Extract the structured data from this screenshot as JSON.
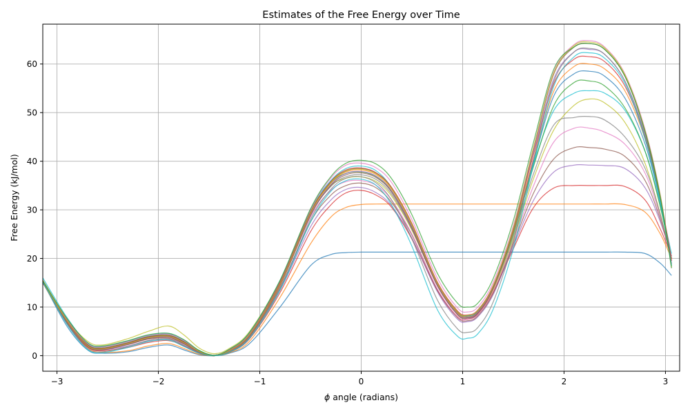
{
  "chart_data": {
    "type": "line",
    "title": "Estimates of the Free Energy over Time",
    "xlabel_symbol": "ϕ",
    "xlabel_rest": " angle (radians)",
    "ylabel": "Free Energy (kJ/mol)",
    "xlim": [
      -3.14,
      3.14
    ],
    "ylim": [
      -3.2,
      68.2
    ],
    "xticks": [
      -3,
      -2,
      -1,
      0,
      1,
      2,
      3
    ],
    "xtick_labels": [
      "−3",
      "−2",
      "−1",
      "0",
      "1",
      "2",
      "3"
    ],
    "yticks": [
      0,
      10,
      20,
      30,
      40,
      50,
      60
    ],
    "ytick_labels": [
      "0",
      "10",
      "20",
      "30",
      "40",
      "50",
      "60"
    ],
    "grid": true,
    "colors": [
      "#1f77b4",
      "#ff7f0e",
      "#d62728",
      "#9467bd",
      "#8c564b",
      "#e377c2",
      "#bcbd22",
      "#7f7f7f",
      "#17becf",
      "#2ca02c"
    ],
    "x": [
      -3.14,
      -2.9,
      -2.7,
      -2.55,
      -2.3,
      -2.1,
      -1.9,
      -1.75,
      -1.6,
      -1.45,
      -1.3,
      -1.1,
      -0.8,
      -0.5,
      -0.3,
      -0.15,
      0.0,
      0.15,
      0.3,
      0.5,
      0.75,
      0.95,
      1.05,
      1.15,
      1.3,
      1.5,
      1.7,
      1.9,
      2.1,
      2.25,
      2.4,
      2.6,
      2.8,
      2.95,
      3.06
    ],
    "series": [
      {
        "values": [
          15.2,
          6.0,
          1.2,
          0.5,
          0.8,
          1.7,
          2.2,
          1.2,
          0.2,
          0.0,
          0.5,
          2.5,
          10.0,
          18.5,
          20.8,
          21.2,
          21.3,
          21.3,
          21.3,
          21.3,
          21.3,
          21.3,
          21.3,
          21.3,
          21.3,
          21.3,
          21.3,
          21.3,
          21.3,
          21.3,
          21.3,
          21.3,
          21.0,
          19.0,
          16.5
        ]
      },
      {
        "values": [
          15.0,
          6.5,
          1.6,
          0.7,
          1.0,
          2.0,
          2.5,
          1.5,
          0.3,
          0.0,
          0.6,
          3.0,
          12.0,
          23.0,
          28.5,
          30.5,
          31.1,
          31.2,
          31.2,
          31.2,
          31.2,
          31.2,
          31.2,
          31.2,
          31.2,
          31.2,
          31.2,
          31.2,
          31.2,
          31.2,
          31.2,
          31.1,
          29.5,
          25.0,
          20.0
        ]
      },
      {
        "values": [
          15.4,
          6.7,
          1.8,
          1.0,
          1.7,
          2.7,
          3.1,
          2.0,
          0.5,
          0.0,
          0.7,
          3.5,
          13.0,
          25.5,
          31.0,
          33.5,
          34.0,
          33.0,
          30.5,
          24.0,
          13.5,
          8.0,
          7.5,
          8.5,
          13.0,
          22.0,
          30.5,
          34.5,
          35.0,
          35.0,
          35.0,
          34.8,
          32.0,
          26.0,
          20.5
        ]
      },
      {
        "values": [
          15.3,
          6.8,
          1.9,
          1.2,
          2.0,
          3.1,
          3.4,
          2.2,
          0.6,
          0.0,
          0.8,
          3.8,
          13.5,
          26.5,
          32.0,
          34.2,
          34.6,
          33.5,
          30.8,
          24.2,
          13.2,
          7.5,
          7.0,
          8.0,
          12.5,
          22.5,
          32.0,
          37.8,
          39.2,
          39.2,
          39.1,
          38.5,
          34.5,
          27.5,
          20.5
        ]
      },
      {
        "values": [
          15.1,
          6.9,
          2.0,
          1.4,
          2.3,
          3.4,
          3.6,
          2.4,
          0.7,
          0.0,
          0.9,
          4.0,
          14.0,
          27.5,
          33.0,
          35.0,
          35.5,
          34.5,
          31.5,
          24.8,
          13.5,
          7.8,
          7.2,
          8.2,
          12.8,
          23.0,
          33.5,
          40.5,
          42.8,
          42.8,
          42.5,
          41.0,
          36.0,
          28.0,
          20.0
        ]
      },
      {
        "values": [
          15.5,
          7.0,
          2.1,
          1.5,
          2.5,
          3.6,
          3.8,
          2.6,
          0.8,
          0.0,
          1.0,
          4.2,
          14.5,
          28.5,
          34.0,
          35.8,
          36.0,
          35.0,
          32.0,
          25.0,
          13.8,
          8.0,
          7.5,
          8.5,
          13.2,
          23.5,
          35.0,
          44.0,
          46.8,
          46.8,
          46.0,
          43.5,
          37.5,
          28.5,
          20.0
        ]
      },
      {
        "values": [
          15.6,
          7.5,
          3.0,
          2.2,
          3.5,
          5.0,
          6.1,
          4.3,
          1.6,
          0.4,
          1.5,
          5.0,
          15.5,
          30.0,
          35.0,
          36.5,
          36.8,
          35.8,
          32.8,
          25.8,
          14.5,
          8.5,
          7.8,
          8.8,
          13.5,
          24.0,
          36.5,
          46.5,
          51.5,
          52.8,
          52.0,
          48.0,
          39.5,
          29.0,
          20.0
        ]
      },
      {
        "values": [
          15.0,
          7.2,
          2.4,
          1.8,
          2.9,
          4.0,
          4.4,
          3.0,
          1.0,
          0.1,
          1.2,
          4.5,
          15.0,
          29.0,
          34.8,
          36.8,
          37.2,
          36.2,
          33.2,
          26.0,
          14.5,
          8.5,
          7.8,
          8.8,
          13.8,
          24.5,
          37.5,
          47.5,
          49.0,
          49.2,
          48.5,
          45.0,
          38.5,
          29.0,
          19.5
        ]
      },
      {
        "values": [
          16.0,
          7.8,
          2.6,
          1.9,
          3.0,
          4.2,
          4.6,
          3.2,
          1.1,
          0.1,
          1.3,
          4.8,
          15.5,
          30.0,
          36.0,
          38.5,
          39.0,
          38.0,
          34.5,
          27.0,
          15.0,
          9.0,
          8.2,
          9.2,
          14.2,
          25.5,
          39.5,
          50.5,
          54.0,
          54.5,
          54.0,
          50.5,
          42.0,
          31.0,
          21.0
        ]
      },
      {
        "values": [
          15.2,
          7.3,
          2.3,
          1.6,
          2.7,
          3.9,
          4.2,
          2.9,
          1.0,
          0.1,
          1.2,
          4.5,
          15.2,
          29.5,
          35.5,
          37.5,
          37.8,
          36.8,
          33.8,
          26.5,
          14.8,
          8.8,
          8.0,
          9.0,
          14.0,
          25.0,
          39.0,
          51.5,
          56.2,
          56.5,
          55.5,
          51.0,
          42.0,
          30.5,
          20.0
        ]
      },
      {
        "values": [
          15.3,
          7.2,
          2.2,
          1.5,
          2.6,
          3.8,
          4.1,
          2.8,
          0.9,
          0.1,
          1.1,
          4.4,
          15.0,
          29.5,
          35.8,
          38.0,
          38.5,
          37.5,
          34.5,
          27.0,
          15.0,
          9.0,
          8.2,
          9.2,
          14.2,
          25.5,
          40.0,
          53.5,
          58.0,
          58.5,
          57.5,
          53.0,
          43.5,
          31.5,
          20.0
        ]
      },
      {
        "values": [
          15.1,
          7.1,
          2.1,
          1.4,
          2.5,
          3.7,
          4.0,
          2.7,
          0.9,
          0.0,
          1.1,
          4.3,
          14.8,
          29.2,
          35.5,
          37.8,
          38.2,
          37.2,
          34.2,
          26.8,
          14.8,
          8.8,
          8.0,
          9.0,
          14.0,
          25.5,
          40.5,
          54.5,
          59.5,
          60.0,
          59.0,
          54.5,
          44.5,
          32.0,
          19.8
        ]
      },
      {
        "values": [
          15.4,
          7.2,
          2.2,
          1.5,
          2.6,
          3.8,
          4.1,
          2.8,
          0.9,
          0.1,
          1.1,
          4.4,
          15.0,
          29.5,
          35.8,
          38.2,
          38.6,
          37.6,
          34.6,
          27.2,
          15.2,
          9.2,
          8.4,
          9.4,
          14.4,
          26.0,
          41.5,
          56.0,
          61.0,
          61.5,
          60.5,
          55.5,
          45.0,
          32.5,
          19.5
        ]
      },
      {
        "values": [
          15.2,
          7.0,
          2.0,
          1.3,
          2.4,
          3.6,
          3.9,
          2.6,
          0.8,
          0.0,
          1.0,
          4.2,
          14.6,
          29.0,
          35.2,
          37.5,
          37.9,
          36.9,
          33.9,
          26.5,
          14.6,
          8.6,
          7.9,
          8.9,
          14.0,
          26.0,
          42.0,
          57.0,
          62.5,
          63.0,
          62.0,
          56.5,
          45.5,
          32.5,
          19.0
        ]
      },
      {
        "values": [
          15.0,
          6.9,
          1.9,
          1.2,
          2.3,
          3.5,
          3.8,
          2.5,
          0.8,
          0.0,
          1.0,
          4.1,
          14.4,
          28.8,
          35.0,
          37.2,
          37.6,
          36.6,
          33.6,
          26.2,
          14.4,
          8.4,
          7.7,
          8.7,
          13.8,
          26.0,
          42.5,
          58.0,
          63.5,
          64.2,
          63.0,
          57.5,
          46.0,
          32.5,
          18.5
        ]
      },
      {
        "values": [
          15.5,
          7.4,
          2.5,
          1.8,
          2.9,
          4.1,
          4.4,
          3.1,
          1.0,
          0.1,
          1.2,
          4.6,
          15.3,
          30.0,
          36.5,
          39.2,
          39.6,
          38.6,
          35.6,
          28.0,
          16.0,
          9.8,
          9.0,
          10.0,
          15.0,
          26.8,
          43.0,
          58.5,
          64.0,
          64.8,
          63.5,
          58.0,
          46.5,
          33.0,
          18.0
        ]
      },
      {
        "values": [
          15.3,
          7.1,
          2.1,
          1.4,
          2.5,
          3.7,
          4.0,
          2.7,
          0.9,
          0.0,
          1.0,
          4.3,
          14.7,
          29.3,
          35.6,
          38.0,
          38.4,
          37.4,
          34.4,
          27.0,
          15.0,
          9.0,
          8.3,
          9.3,
          14.3,
          26.3,
          42.8,
          58.2,
          63.8,
          64.5,
          63.3,
          57.8,
          46.2,
          32.8,
          18.2
        ]
      },
      {
        "values": [
          15.1,
          6.6,
          1.5,
          0.8,
          1.9,
          3.1,
          3.4,
          2.1,
          0.6,
          0.0,
          0.8,
          3.8,
          13.8,
          28.0,
          34.2,
          36.5,
          36.8,
          35.5,
          32.0,
          24.0,
          11.5,
          5.5,
          4.8,
          5.8,
          11.0,
          23.5,
          40.5,
          56.5,
          62.5,
          63.2,
          62.0,
          56.5,
          45.0,
          32.0,
          18.8
        ]
      },
      {
        "values": [
          15.2,
          6.4,
          1.3,
          0.6,
          1.7,
          2.9,
          3.2,
          1.9,
          0.5,
          0.0,
          0.7,
          3.6,
          13.5,
          27.5,
          33.8,
          36.0,
          36.3,
          35.0,
          31.0,
          22.5,
          9.5,
          4.0,
          3.6,
          4.5,
          9.5,
          22.0,
          39.5,
          55.5,
          61.5,
          62.3,
          61.2,
          56.0,
          44.5,
          31.5,
          18.5
        ]
      },
      {
        "values": [
          15.4,
          7.6,
          2.7,
          2.0,
          3.1,
          4.3,
          4.6,
          3.3,
          1.1,
          0.1,
          1.3,
          4.8,
          15.5,
          30.2,
          36.8,
          39.6,
          40.2,
          39.4,
          36.4,
          29.0,
          17.0,
          10.8,
          10.0,
          10.8,
          15.8,
          27.8,
          44.0,
          59.0,
          63.5,
          64.2,
          63.0,
          57.5,
          46.0,
          32.5,
          18.0
        ]
      }
    ]
  }
}
